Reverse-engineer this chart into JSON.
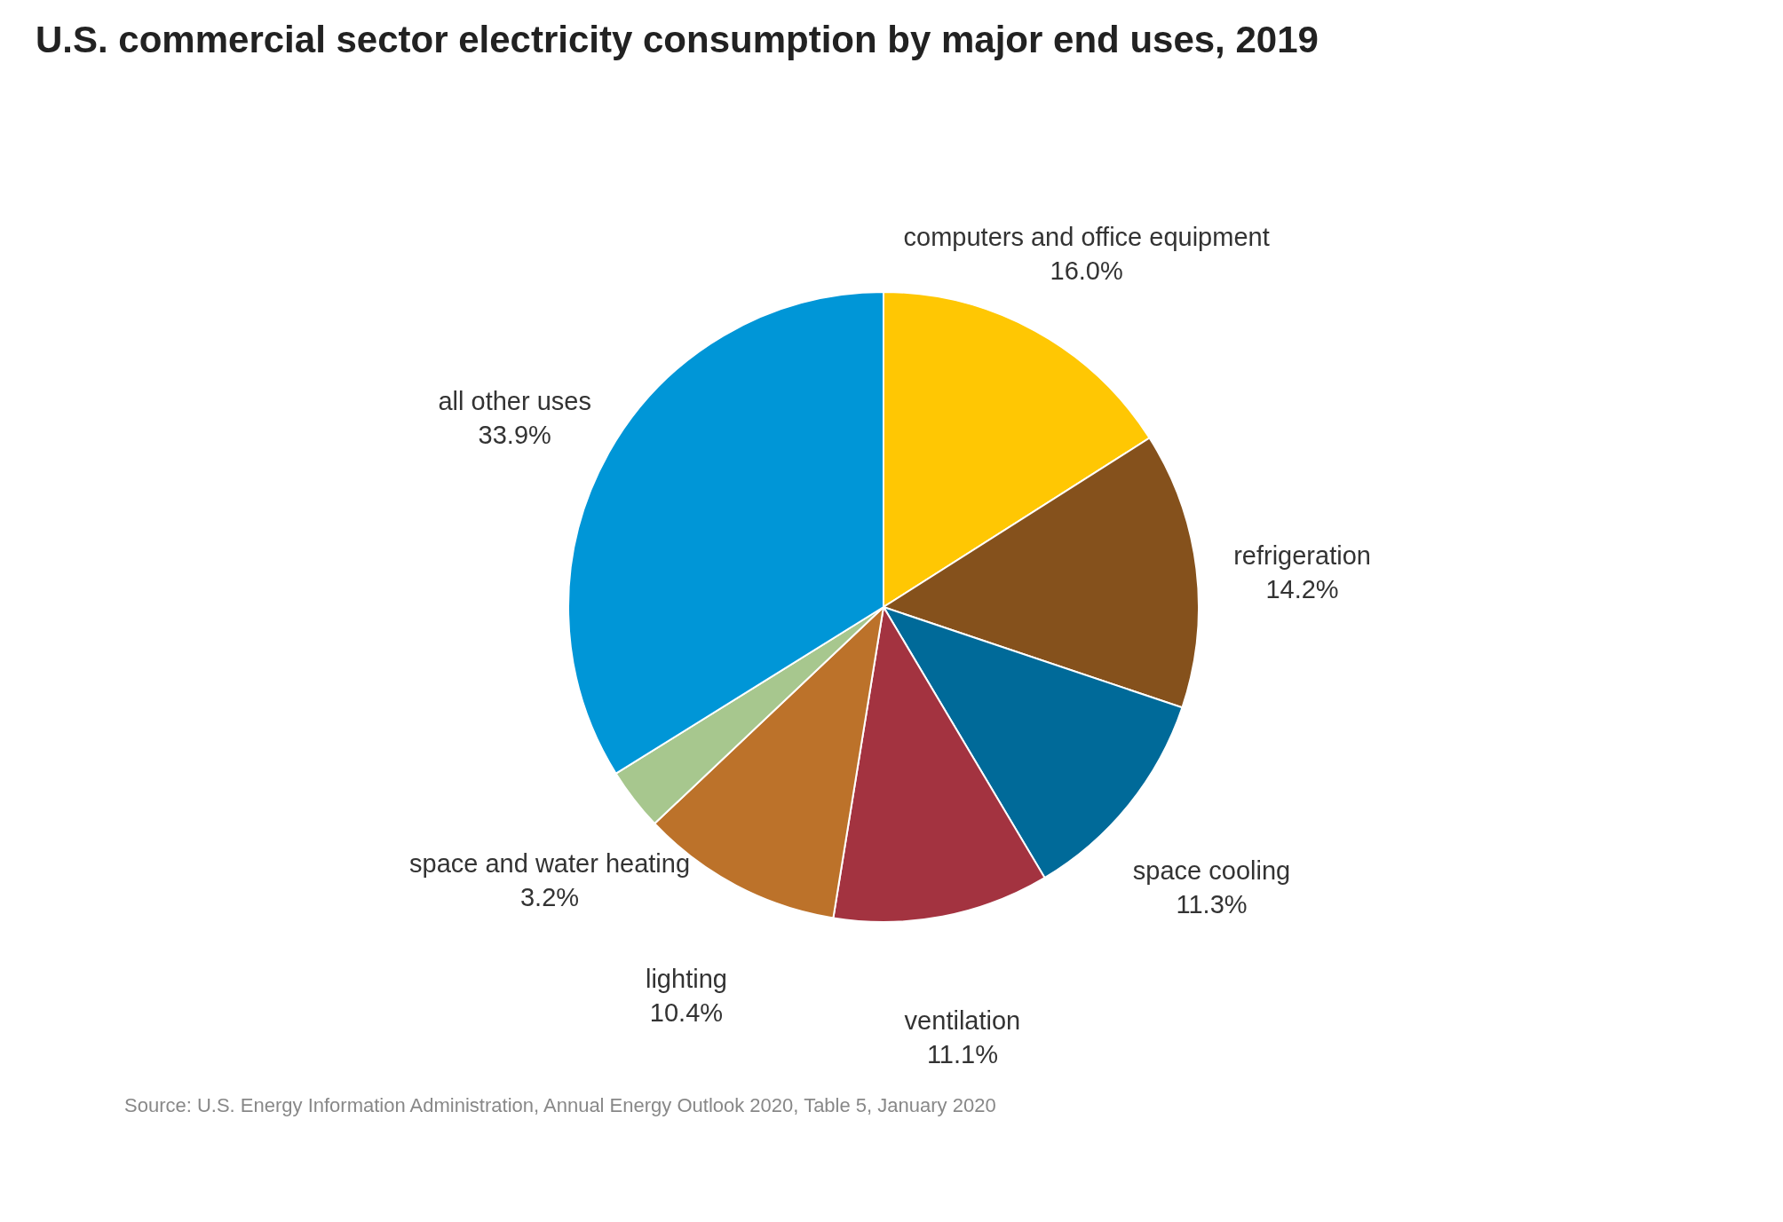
{
  "chart_data": {
    "type": "pie",
    "title": "U.S. commercial sector electricity consumption by major end uses, 2019",
    "categories": [
      "computers and office equipment",
      "refrigeration",
      "space cooling",
      "ventilation",
      "lighting",
      "space and water heating",
      "all other uses"
    ],
    "values": [
      16.0,
      14.2,
      11.3,
      11.1,
      10.4,
      3.2,
      33.9
    ],
    "value_labels": [
      "16.0%",
      "14.2%",
      "11.3%",
      "11.1%",
      "10.4%",
      "3.2%",
      "33.9%"
    ],
    "colors": [
      "#ffc703",
      "#85511c",
      "#006a99",
      "#a33340",
      "#bc722a",
      "#a7c78e",
      "#0096d7"
    ],
    "legend": false,
    "annotations": [
      "Source: U.S. Energy Information Administration, Annual Energy Outlook 2020, Table 5, January 2020"
    ]
  }
}
